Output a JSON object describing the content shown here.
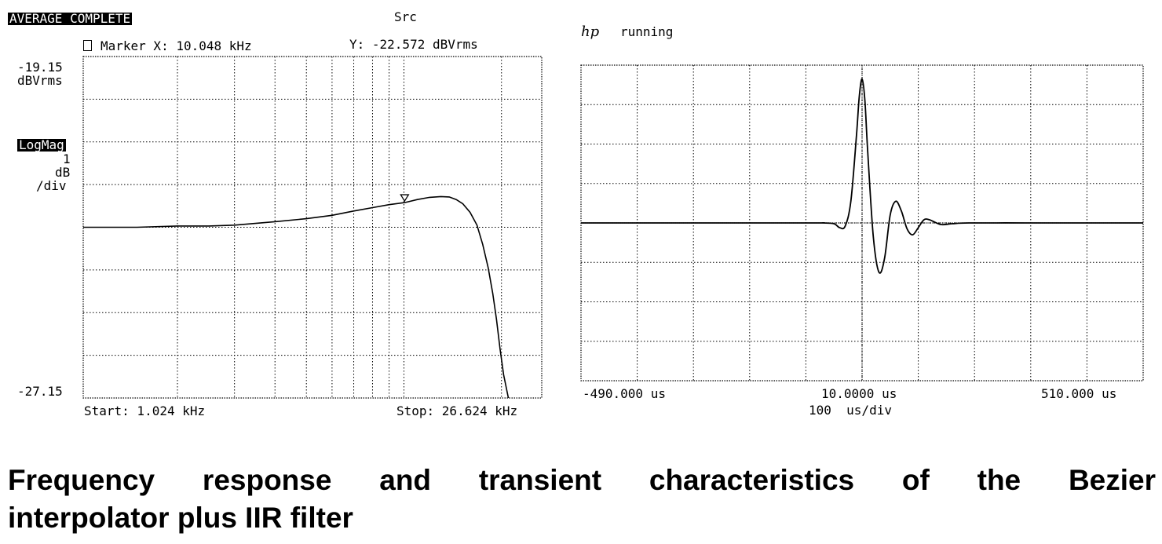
{
  "left_panel": {
    "status": "AVERAGE COMPLETE",
    "channel": "Src",
    "marker_icon": "marker-icon",
    "marker_x": "Marker X: 10.048 kHz",
    "marker_y": "Y: -22.572 dBVrms",
    "y_top_value": "-19.15",
    "y_top_unit": "dBVrms",
    "y_bottom_value": "-27.15",
    "mode_label": "LogMag",
    "scale_value": "1",
    "scale_unit": "dB",
    "scale_per": "/div",
    "start_label": "Start: 1.024 kHz",
    "stop_label": "Stop: 26.624 kHz"
  },
  "right_panel": {
    "logo": "hp",
    "status": "running",
    "x_left": "-490.000 us",
    "x_center": "10.0000 us",
    "x_right": "510.000 us",
    "x_scale": "100  us/div"
  },
  "chart_data": [
    {
      "type": "line",
      "x_scale": "log",
      "xlim": [
        1.024,
        26.624
      ],
      "ylim": [
        -27.15,
        -19.15
      ],
      "x_unit": "kHz",
      "y_unit": "dBVrms",
      "grid": true,
      "series": [
        {
          "x": [
            1.024,
            1.5,
            2.0,
            2.5,
            3.0,
            4.0,
            5.0,
            6.0,
            7.0,
            8.0,
            9.0,
            10.048,
            11.0,
            12.0,
            13.0,
            13.8,
            14.5,
            15.2,
            16.0,
            16.8,
            17.5,
            18.2,
            18.8,
            19.3,
            19.8,
            20.3,
            21.0
          ],
          "y": [
            -23.15,
            -23.15,
            -23.12,
            -23.12,
            -23.1,
            -23.02,
            -22.95,
            -22.87,
            -22.77,
            -22.69,
            -22.62,
            -22.572,
            -22.5,
            -22.45,
            -22.43,
            -22.44,
            -22.5,
            -22.6,
            -22.8,
            -23.1,
            -23.55,
            -24.1,
            -24.7,
            -25.3,
            -26.0,
            -26.6,
            -27.15
          ]
        }
      ],
      "marker": {
        "x": 10.048,
        "y": -22.572
      }
    },
    {
      "type": "line",
      "xlim": [
        -490,
        510
      ],
      "x_unit": "us",
      "x_per_div": 100,
      "y_divisions": 8,
      "grid": true,
      "series": [
        {
          "x": [
            -490,
            -100,
            -60,
            -40,
            -30,
            -20,
            -10,
            0,
            5,
            10,
            15,
            20,
            30,
            40,
            50,
            60,
            70,
            80,
            90,
            100,
            110,
            120,
            130,
            150,
            170,
            200,
            300,
            400,
            510
          ],
          "y": [
            0,
            0,
            0,
            -0.02,
            -0.12,
            -0.08,
            0.55,
            2.2,
            3.2,
            3.65,
            3.1,
            1.8,
            -0.35,
            -1.25,
            -0.9,
            0.2,
            0.55,
            0.3,
            -0.15,
            -0.3,
            -0.12,
            0.08,
            0.08,
            -0.04,
            -0.02,
            0,
            0,
            0,
            0
          ]
        }
      ]
    }
  ],
  "caption": {
    "line1": "Frequency response and transient characteristics of the Bezier",
    "line2": "interpolator plus IIR filter"
  }
}
